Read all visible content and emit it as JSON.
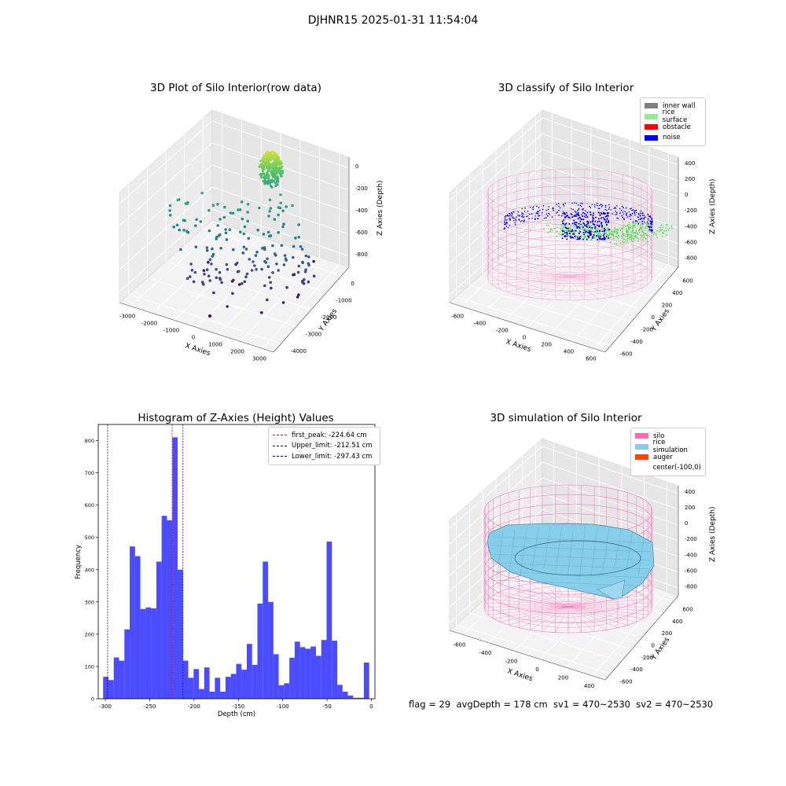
{
  "suptitle": "DJHNR15 2025-01-31 11:54:04",
  "footer_text": "flag = 29  avgDepth = 178 cm  sv1 = 470~2530  sv2 = 470~2530",
  "chart_data": [
    {
      "type": "scatter",
      "projection": "3d",
      "title": "3D Plot of Silo Interior(row data)",
      "xlabel": "X Axies",
      "ylabel": "Y Axies",
      "zlabel": "Z Axies (Depth)",
      "x_ticks": [
        "-3000",
        "-2000",
        "-1000",
        "0",
        "1000",
        "2000",
        "3000"
      ],
      "y_ticks": [
        "0",
        "-1000",
        "-2000",
        "-3000",
        "-4000"
      ],
      "z_ticks": [
        "0",
        "-200",
        "-400",
        "-600",
        "-800"
      ],
      "colormap": "viridis",
      "grid": true
    },
    {
      "type": "scatter",
      "projection": "3d",
      "title": "3D classify of Silo Interior",
      "xlabel": "X Axies",
      "ylabel": "Y Axies",
      "zlabel": "Z Axies (Depth)",
      "x_ticks": [
        "-600",
        "-400",
        "-200",
        "0",
        "200",
        "400",
        "600"
      ],
      "y_ticks": [
        "600",
        "400",
        "200",
        "0",
        "-200",
        "-400",
        "-600"
      ],
      "z_ticks": [
        "400",
        "200",
        "0",
        "-200",
        "-400",
        "-600",
        "-800"
      ],
      "legend": [
        {
          "label": "inner wall",
          "color": "#808080"
        },
        {
          "label": "rice surface",
          "color": "#90ee90"
        },
        {
          "label": "obstacle",
          "color": "#ff0000"
        },
        {
          "label": "noise",
          "color": "#0000ff"
        }
      ],
      "legend_position": "top-right",
      "grid": true
    },
    {
      "type": "bar",
      "title": "Histogram of Z-Axies (Height) Values",
      "xlabel": "Depth (cm)",
      "ylabel": "Frequency",
      "xlim": [
        -308,
        4
      ],
      "ylim": [
        0,
        850
      ],
      "x_ticks": [
        -300,
        -250,
        -200,
        -150,
        -100,
        -50,
        0
      ],
      "y_ticks": [
        0,
        100,
        200,
        300,
        400,
        500,
        600,
        700,
        800
      ],
      "bin_start": -302.5,
      "bin_width": 6,
      "values": [
        68,
        58,
        128,
        118,
        215,
        472,
        442,
        278,
        283,
        280,
        425,
        567,
        553,
        810,
        400,
        118,
        65,
        92,
        30,
        97,
        22,
        65,
        22,
        68,
        77,
        108,
        90,
        170,
        105,
        295,
        425,
        300,
        138,
        42,
        48,
        127,
        177,
        160,
        155,
        162,
        133,
        182,
        487,
        180,
        43,
        22,
        10,
        3,
        3,
        112
      ],
      "bar_color": "#0000ff",
      "reference_lines": [
        {
          "label": "first_peak: -224.64 cm",
          "x": -224.64,
          "color": "#ff0000"
        },
        {
          "label": "Upper_limit: -212.51 cm",
          "x": -212.51,
          "color": "#0000cc"
        },
        {
          "label": "Lower_limit: -297.43 cm",
          "x": -297.43,
          "color": "#0000cc"
        }
      ],
      "legend_position": "top-right"
    },
    {
      "type": "surface",
      "projection": "3d",
      "title": "3D simulation of Silo Interior",
      "xlabel": "X Axies",
      "ylabel": "Y Axies",
      "zlabel": "Z Axies (Depth)",
      "x_ticks": [
        "-600",
        "-400",
        "-200",
        "0",
        "200",
        "400"
      ],
      "y_ticks": [
        "600",
        "400",
        "200",
        "0",
        "-200",
        "-400",
        "-600"
      ],
      "z_ticks": [
        "400",
        "200",
        "0",
        "-200",
        "-400",
        "-600",
        "-800"
      ],
      "legend": [
        {
          "label": "silo",
          "color": "#ff69b4"
        },
        {
          "label": "rice simulation",
          "color": "#87ceeb"
        },
        {
          "label": "auger",
          "color": "#ff4500"
        },
        {
          "label": "center(-100,0)",
          "color": "#ffffff"
        }
      ],
      "legend_position": "top-right",
      "grid": true
    }
  ]
}
